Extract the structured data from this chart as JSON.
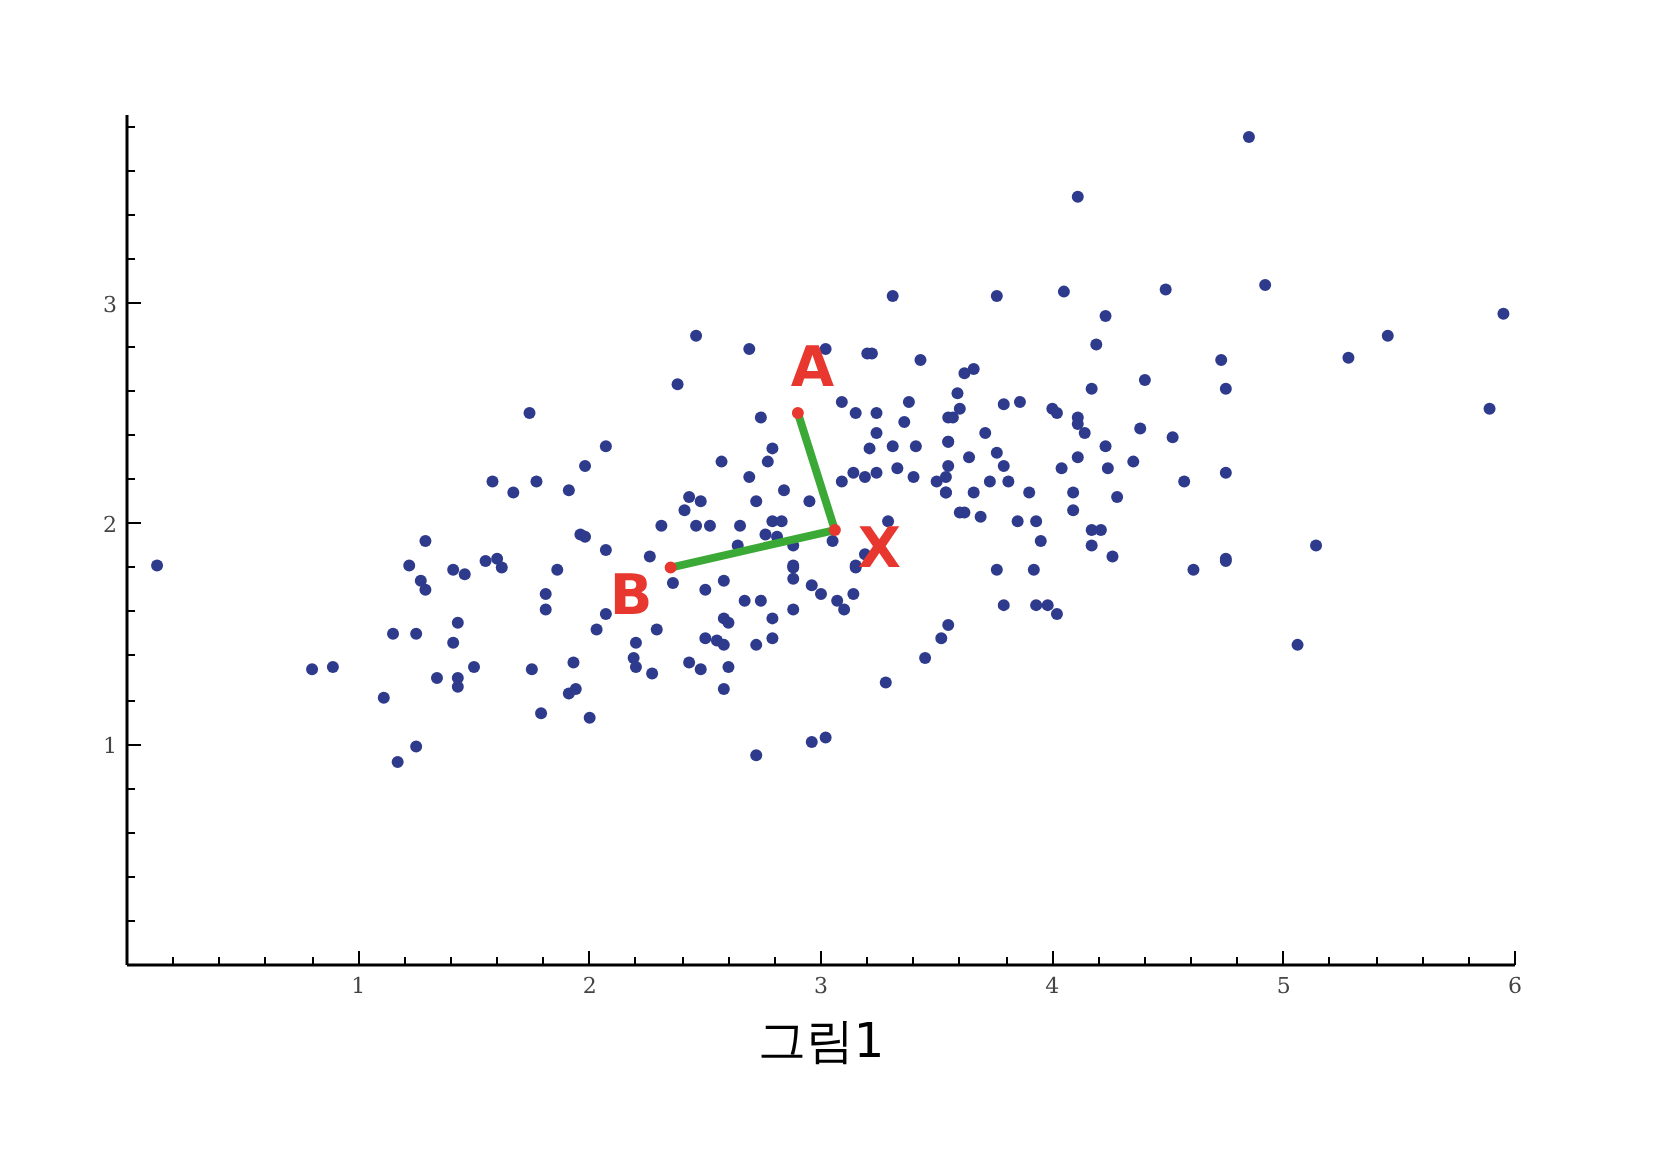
{
  "chart_data": {
    "type": "scatter",
    "marker": "circle",
    "grid": false,
    "xlim": [
      0,
      6
    ],
    "ylim": [
      0,
      3.85
    ],
    "xticks": [
      {
        "value": 0.2,
        "label": null
      },
      {
        "value": 0.4,
        "label": null
      },
      {
        "value": 0.6,
        "label": null
      },
      {
        "value": 0.8,
        "label": null
      },
      1,
      {
        "value": 1.2,
        "label": null
      },
      {
        "value": 1.4,
        "label": null
      },
      {
        "value": 1.6,
        "label": null
      },
      {
        "value": 1.8,
        "label": null
      },
      2,
      {
        "value": 2.2,
        "label": null
      },
      {
        "value": 2.4,
        "label": null
      },
      {
        "value": 2.6,
        "label": null
      },
      {
        "value": 2.8,
        "label": null
      },
      3,
      {
        "value": 3.2,
        "label": null
      },
      {
        "value": 3.4,
        "label": null
      },
      {
        "value": 3.6,
        "label": null
      },
      {
        "value": 3.8,
        "label": null
      },
      4,
      {
        "value": 4.2,
        "label": null
      },
      {
        "value": 4.4,
        "label": null
      },
      {
        "value": 4.6,
        "label": null
      },
      {
        "value": 4.8,
        "label": null
      },
      5,
      {
        "value": 5.2,
        "label": null
      },
      {
        "value": 5.4,
        "label": null
      },
      {
        "value": 5.6,
        "label": null
      },
      {
        "value": 5.8,
        "label": null
      },
      6
    ],
    "yticks": [
      {
        "value": 0.2,
        "label": null
      },
      {
        "value": 0.4,
        "label": null
      },
      {
        "value": 0.6,
        "label": null
      },
      {
        "value": 0.8,
        "label": null
      },
      1,
      {
        "value": 1.2,
        "label": null
      },
      {
        "value": 1.4,
        "label": null
      },
      {
        "value": 1.6,
        "label": null
      },
      {
        "value": 1.8,
        "label": null
      },
      2,
      {
        "value": 2.2,
        "label": null
      },
      {
        "value": 2.4,
        "label": null
      },
      {
        "value": 2.6,
        "label": null
      },
      {
        "value": 2.8,
        "label": null
      },
      3,
      {
        "value": 3.2,
        "label": null
      },
      {
        "value": 3.4,
        "label": null
      },
      {
        "value": 3.6,
        "label": null
      },
      {
        "value": 3.8,
        "label": null
      }
    ],
    "series": [
      {
        "color": "#2e3a8c",
        "x": [
          0.13,
          1.74,
          2.07,
          1.98,
          1.58,
          1.67,
          1.77,
          1.91,
          1.29,
          1.96,
          1.98,
          2.07,
          1.22,
          1.41,
          1.46,
          1.55,
          1.6,
          1.62,
          1.86,
          1.27,
          1.29,
          1.81,
          1.81,
          2.07,
          2.03,
          1.15,
          1.25,
          1.43,
          1.41,
          0.8,
          0.89,
          1.34,
          1.43,
          1.43,
          1.5,
          1.75,
          1.93,
          1.91,
          1.94,
          1.11,
          1.79,
          2.0,
          1.25,
          1.17,
          3.31,
          2.46,
          2.69,
          3.02,
          3.2,
          3.22,
          3.43,
          2.38,
          3.09,
          3.38,
          3.15,
          3.24,
          2.74,
          3.36,
          3.55,
          3.24,
          2.79,
          2.57,
          2.77,
          3.21,
          3.31,
          3.41,
          3.55,
          2.69,
          3.09,
          3.14,
          3.19,
          3.24,
          3.33,
          3.4,
          3.5,
          3.54,
          2.84,
          2.72,
          2.43,
          2.48,
          2.41,
          2.95,
          2.31,
          2.46,
          2.52,
          2.65,
          2.79,
          2.83,
          2.76,
          2.81,
          3.05,
          3.29,
          3.6,
          2.26,
          2.64,
          2.88,
          3.15,
          3.19,
          2.88,
          2.88,
          2.88,
          3.15,
          2.36,
          2.5,
          2.58,
          2.96,
          3.0,
          3.14,
          3.07,
          3.1,
          2.67,
          2.74,
          2.88,
          2.29,
          2.58,
          2.6,
          2.79,
          3.55,
          3.52,
          2.5,
          2.55,
          2.58,
          2.79,
          2.72,
          2.2,
          2.19,
          2.2,
          2.43,
          2.48,
          2.6,
          2.27,
          3.45,
          2.58,
          3.28,
          2.96,
          3.02,
          2.72,
          4.85,
          4.11,
          3.76,
          4.05,
          4.49,
          4.92,
          5.95,
          4.23,
          4.19,
          5.45,
          5.28,
          4.73,
          4.75,
          4.4,
          4.17,
          3.62,
          3.66,
          3.59,
          3.57,
          3.6,
          3.79,
          3.86,
          4.0,
          4.02,
          4.11,
          4.11,
          4.14,
          3.71,
          3.55,
          4.23,
          4.38,
          4.52,
          5.89,
          3.64,
          3.76,
          3.79,
          4.11,
          4.35,
          4.04,
          4.24,
          3.55,
          3.54,
          3.54,
          3.73,
          3.81,
          3.66,
          3.9,
          4.09,
          4.09,
          4.28,
          4.57,
          4.75,
          3.62,
          3.69,
          3.85,
          3.93,
          4.17,
          4.21,
          3.95,
          4.17,
          4.26,
          5.14,
          4.75,
          3.76,
          3.92,
          4.61,
          4.75,
          3.79,
          3.93,
          3.98,
          4.02,
          5.06
        ],
        "values": [
          1.81,
          2.5,
          2.35,
          2.26,
          2.19,
          2.14,
          2.19,
          2.15,
          1.92,
          1.95,
          1.94,
          1.88,
          1.81,
          1.79,
          1.77,
          1.83,
          1.84,
          1.8,
          1.79,
          1.74,
          1.7,
          1.68,
          1.61,
          1.59,
          1.52,
          1.5,
          1.5,
          1.55,
          1.46,
          1.34,
          1.35,
          1.3,
          1.3,
          1.26,
          1.35,
          1.34,
          1.37,
          1.23,
          1.25,
          1.21,
          1.14,
          1.12,
          0.99,
          0.92,
          3.03,
          2.85,
          2.79,
          2.79,
          2.77,
          2.77,
          2.74,
          2.63,
          2.55,
          2.55,
          2.5,
          2.5,
          2.48,
          2.46,
          2.48,
          2.41,
          2.34,
          2.28,
          2.28,
          2.34,
          2.35,
          2.35,
          2.37,
          2.21,
          2.19,
          2.23,
          2.21,
          2.23,
          2.25,
          2.21,
          2.19,
          2.14,
          2.15,
          2.1,
          2.12,
          2.1,
          2.06,
          2.1,
          1.99,
          1.99,
          1.99,
          1.99,
          2.01,
          2.01,
          1.95,
          1.94,
          1.92,
          2.01,
          2.05,
          1.85,
          1.9,
          1.9,
          1.81,
          1.86,
          1.81,
          1.8,
          1.75,
          1.8,
          1.73,
          1.7,
          1.74,
          1.72,
          1.68,
          1.68,
          1.65,
          1.61,
          1.65,
          1.65,
          1.61,
          1.52,
          1.57,
          1.55,
          1.57,
          1.54,
          1.48,
          1.48,
          1.47,
          1.45,
          1.48,
          1.45,
          1.46,
          1.39,
          1.35,
          1.37,
          1.34,
          1.35,
          1.32,
          1.39,
          1.25,
          1.28,
          1.01,
          1.03,
          0.95,
          3.75,
          3.48,
          3.03,
          3.05,
          3.06,
          3.08,
          2.95,
          2.94,
          2.81,
          2.85,
          2.75,
          2.74,
          2.61,
          2.65,
          2.61,
          2.68,
          2.7,
          2.59,
          2.48,
          2.52,
          2.54,
          2.55,
          2.52,
          2.5,
          2.48,
          2.45,
          2.41,
          2.41,
          2.37,
          2.35,
          2.43,
          2.39,
          2.52,
          2.3,
          2.32,
          2.26,
          2.3,
          2.28,
          2.25,
          2.25,
          2.26,
          2.21,
          2.14,
          2.19,
          2.19,
          2.14,
          2.14,
          2.14,
          2.06,
          2.12,
          2.19,
          2.23,
          2.05,
          2.03,
          2.01,
          2.01,
          1.97,
          1.97,
          1.92,
          1.9,
          1.85,
          1.9,
          1.84,
          1.79,
          1.79,
          1.79,
          1.83,
          1.63,
          1.63,
          1.63,
          1.59,
          1.45
        ]
      },
      {
        "type": "line",
        "marker": "none",
        "color": "#3aa935",
        "x": [
          2.9,
          3.06,
          2.35
        ],
        "values": [
          2.5,
          1.97,
          1.8
        ]
      },
      {
        "type": "scatter",
        "color": "#e8372f",
        "x": [
          2.9,
          3.06,
          2.35
        ],
        "values": [
          2.5,
          1.97,
          1.8
        ]
      }
    ],
    "annotations": [
      {
        "text": "A",
        "x": 2.9,
        "y": 2.5
      },
      {
        "text": "X",
        "x": 3.06,
        "y": 1.97
      },
      {
        "text": "B",
        "x": 2.35,
        "y": 1.8
      },
      "그림1"
    ]
  }
}
